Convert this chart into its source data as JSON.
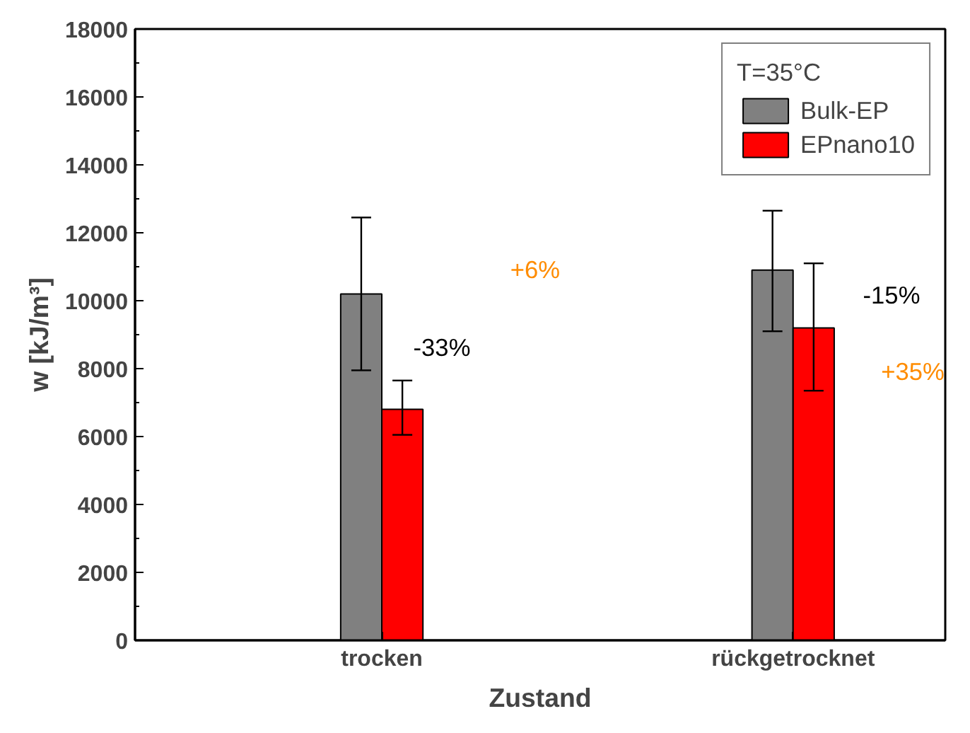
{
  "chart_data": {
    "type": "bar",
    "categories": [
      "trocken",
      "rückgetrocknet"
    ],
    "series": [
      {
        "name": "Bulk-EP",
        "color": "#808080",
        "values": [
          10200,
          10900
        ],
        "errors": [
          [
            7950,
            12450
          ],
          [
            9100,
            12650
          ]
        ]
      },
      {
        "name": "EPnano10",
        "color": "#ff0000",
        "values": [
          6800,
          9200
        ],
        "errors": [
          [
            6050,
            7650
          ],
          [
            7350,
            11100
          ]
        ]
      }
    ],
    "xlabel": "Zustand",
    "ylabel": "w [kJ/m³]",
    "legend_title": "T=35°C",
    "legend": "top right",
    "ylim": [
      0,
      18000
    ],
    "yticks": [
      0,
      2000,
      4000,
      6000,
      8000,
      10000,
      12000,
      14000,
      16000,
      18000
    ],
    "grid": false,
    "annotations": [
      "-33%",
      "+6%",
      "-15%",
      "+35%"
    ]
  }
}
